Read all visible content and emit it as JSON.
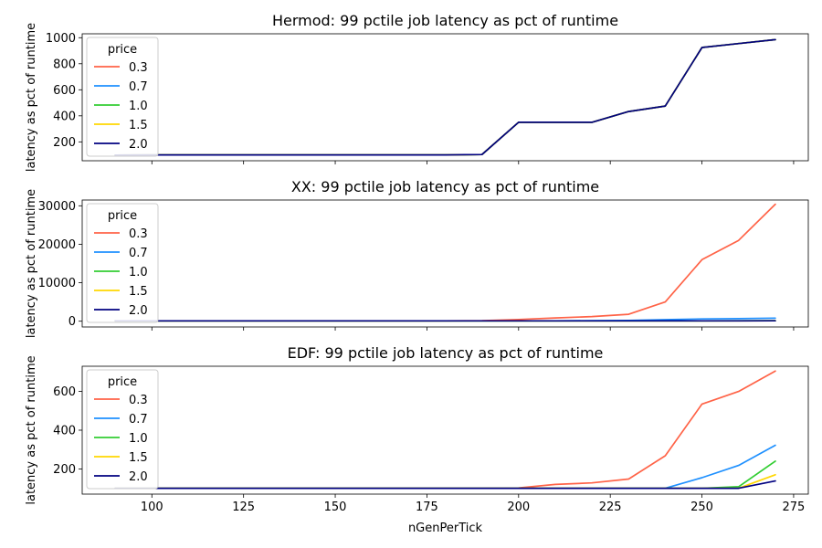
{
  "colors": {
    "0.3": "#ff6347",
    "0.7": "#1e90ff",
    "1.0": "#32cd32",
    "1.5": "#ffd700",
    "2.0": "#000080"
  },
  "chart_data": [
    {
      "type": "line",
      "title": "Hermod: 99 pctile job latency as pct of runtime",
      "xlabel": "",
      "ylabel": "latency as pct of runtime",
      "xlim": [
        81,
        279
      ],
      "ylim": [
        55,
        1030
      ],
      "xticks": [
        100,
        125,
        150,
        175,
        200,
        225,
        250,
        275
      ],
      "show_xtick_labels": false,
      "yticks": [
        200,
        400,
        600,
        800,
        1000
      ],
      "ytick_labels": [
        "200",
        "400",
        "600",
        "800",
        "1000"
      ],
      "legend": {
        "title": "price",
        "placement": "upper left"
      },
      "x": [
        90,
        100,
        110,
        120,
        130,
        140,
        150,
        160,
        170,
        180,
        190,
        200,
        210,
        220,
        230,
        240,
        250,
        260,
        270
      ],
      "series": [
        {
          "name": "0.3",
          "values": [
            98,
            100,
            100,
            100,
            100,
            100,
            100,
            100,
            100,
            100,
            103,
            350,
            350,
            350,
            433,
            475,
            925,
            955,
            985
          ]
        },
        {
          "name": "0.7",
          "values": [
            98,
            100,
            100,
            100,
            100,
            100,
            100,
            100,
            100,
            100,
            103,
            350,
            350,
            350,
            433,
            475,
            925,
            955,
            985
          ]
        },
        {
          "name": "1.0",
          "values": [
            98,
            100,
            100,
            100,
            100,
            100,
            100,
            100,
            100,
            100,
            103,
            350,
            350,
            350,
            433,
            475,
            925,
            955,
            985
          ]
        },
        {
          "name": "1.5",
          "values": [
            98,
            100,
            100,
            100,
            100,
            100,
            100,
            100,
            100,
            100,
            103,
            350,
            350,
            350,
            433,
            475,
            925,
            955,
            985
          ]
        },
        {
          "name": "2.0",
          "values": [
            98,
            100,
            100,
            100,
            100,
            100,
            100,
            100,
            100,
            100,
            103,
            350,
            350,
            350,
            433,
            475,
            925,
            955,
            985
          ]
        }
      ]
    },
    {
      "type": "line",
      "title": "XX: 99 pctile job latency as pct of runtime",
      "xlabel": "",
      "ylabel": "latency as pct of runtime",
      "xlim": [
        81,
        279
      ],
      "ylim": [
        -1500,
        31500
      ],
      "xticks": [
        100,
        125,
        150,
        175,
        200,
        225,
        250,
        275
      ],
      "show_xtick_labels": false,
      "yticks": [
        0,
        10000,
        20000,
        30000
      ],
      "ytick_labels": [
        "0",
        "10000",
        "20000",
        "30000"
      ],
      "legend": {
        "title": "price",
        "placement": "upper left"
      },
      "x": [
        90,
        100,
        110,
        120,
        130,
        140,
        150,
        160,
        170,
        180,
        190,
        200,
        210,
        220,
        230,
        240,
        250,
        260,
        270
      ],
      "series": [
        {
          "name": "0.3",
          "values": [
            100,
            100,
            100,
            100,
            100,
            100,
            100,
            100,
            100,
            100,
            150,
            450,
            850,
            1200,
            1800,
            5000,
            16000,
            21000,
            30400
          ]
        },
        {
          "name": "0.7",
          "values": [
            100,
            100,
            100,
            100,
            100,
            100,
            100,
            100,
            100,
            100,
            100,
            100,
            100,
            150,
            200,
            400,
            600,
            650,
            800
          ]
        },
        {
          "name": "1.0",
          "values": [
            100,
            100,
            100,
            100,
            100,
            100,
            100,
            100,
            100,
            100,
            100,
            100,
            100,
            100,
            100,
            100,
            100,
            110,
            150
          ]
        },
        {
          "name": "1.5",
          "values": [
            100,
            100,
            100,
            100,
            100,
            100,
            100,
            100,
            100,
            100,
            100,
            100,
            100,
            100,
            100,
            100,
            100,
            100,
            120
          ]
        },
        {
          "name": "2.0",
          "values": [
            100,
            100,
            100,
            100,
            100,
            100,
            100,
            100,
            100,
            100,
            100,
            100,
            100,
            100,
            100,
            100,
            100,
            100,
            110
          ]
        }
      ]
    },
    {
      "type": "line",
      "title": "EDF: 99 pctile job latency as pct of runtime",
      "xlabel": "nGenPerTick",
      "ylabel": "latency as pct of runtime",
      "xlim": [
        81,
        279
      ],
      "ylim": [
        70,
        730
      ],
      "xticks": [
        100,
        125,
        150,
        175,
        200,
        225,
        250,
        275
      ],
      "xtick_labels": [
        "100",
        "125",
        "150",
        "175",
        "200",
        "225",
        "250",
        "275"
      ],
      "show_xtick_labels": true,
      "yticks": [
        200,
        400,
        600
      ],
      "ytick_labels": [
        "200",
        "400",
        "600"
      ],
      "legend": {
        "title": "price",
        "placement": "upper left"
      },
      "x": [
        90,
        100,
        110,
        120,
        130,
        140,
        150,
        160,
        170,
        180,
        190,
        200,
        210,
        220,
        230,
        240,
        250,
        260,
        270
      ],
      "series": [
        {
          "name": "0.3",
          "values": [
            100,
            100,
            100,
            100,
            100,
            100,
            100,
            100,
            100,
            100,
            100,
            102,
            120,
            128,
            148,
            268,
            535,
            600,
            705
          ]
        },
        {
          "name": "0.7",
          "values": [
            100,
            100,
            100,
            100,
            100,
            100,
            100,
            100,
            100,
            100,
            100,
            100,
            100,
            100,
            100,
            100,
            155,
            218,
            322
          ]
        },
        {
          "name": "1.0",
          "values": [
            100,
            100,
            100,
            100,
            100,
            100,
            100,
            100,
            100,
            100,
            100,
            100,
            100,
            100,
            100,
            100,
            100,
            108,
            240
          ]
        },
        {
          "name": "1.5",
          "values": [
            100,
            100,
            100,
            100,
            100,
            100,
            100,
            100,
            100,
            100,
            100,
            100,
            100,
            100,
            100,
            100,
            100,
            100,
            170
          ]
        },
        {
          "name": "2.0",
          "values": [
            100,
            100,
            100,
            100,
            100,
            100,
            100,
            100,
            100,
            100,
            100,
            100,
            100,
            100,
            100,
            100,
            100,
            100,
            138
          ]
        }
      ]
    }
  ]
}
